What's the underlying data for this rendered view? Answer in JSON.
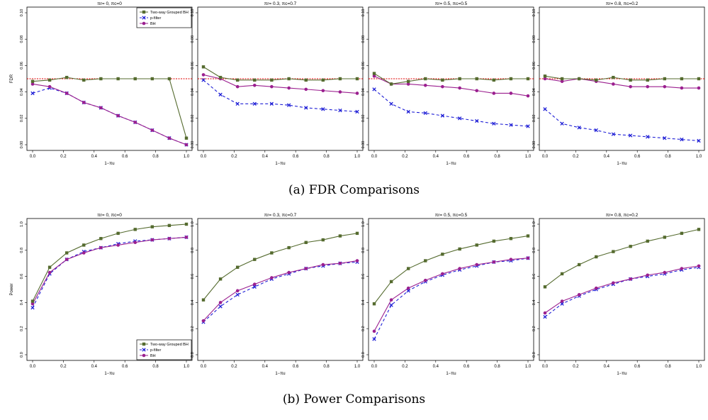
{
  "captions": {
    "fdr": "(a) FDR Comparisons",
    "power": "(b) Power Comparisons"
  },
  "legend": [
    "Two-way Grouped BH",
    "p-filter",
    "BH"
  ],
  "x_tick_labels": [
    "0.0",
    "0.2",
    "0.4",
    "0.6",
    "0.8",
    "1.0"
  ],
  "colors": {
    "two_way": "#556b2f",
    "p_filter": "#1f1fd6",
    "bh": "#9b1f8f",
    "target_line": "#e00000"
  },
  "chart_data": [
    {
      "type": "line",
      "title": "πr= 0, πc=0",
      "xlabel": "1−πu",
      "ylabel": "FDR",
      "ylim": [
        0,
        0.1
      ],
      "yticks": [
        "0.00",
        "0.02",
        "0.04",
        "0.06",
        "0.08",
        "0.10"
      ],
      "reference_line": 0.05,
      "legend": "top-right",
      "x": [
        0,
        0.111,
        0.222,
        0.333,
        0.444,
        0.556,
        0.667,
        0.778,
        0.889,
        1.0
      ],
      "series": [
        {
          "name": "Two-way Grouped BH",
          "values": [
            0.048,
            0.049,
            0.051,
            0.049,
            0.05,
            0.05,
            0.05,
            0.05,
            0.05,
            0.005
          ]
        },
        {
          "name": "p-filter",
          "values": [
            0.039,
            0.043,
            0.039,
            0.032,
            0.028,
            0.022,
            0.017,
            0.011,
            0.005,
            0.0
          ]
        },
        {
          "name": "BH",
          "values": [
            0.046,
            0.044,
            0.039,
            0.032,
            0.028,
            0.022,
            0.017,
            0.011,
            0.005,
            0.0
          ]
        }
      ]
    },
    {
      "type": "line",
      "title": "πr= 0.3, πc=0.7",
      "xlabel": "1−πu",
      "ylabel": "",
      "ylim": [
        0,
        0.1
      ],
      "yticks": [
        "0.00",
        "0.02",
        "0.04",
        "0.06",
        "0.08",
        "0.10"
      ],
      "reference_line": 0.05,
      "x": [
        0,
        0.111,
        0.222,
        0.333,
        0.444,
        0.556,
        0.667,
        0.778,
        0.889,
        1.0
      ],
      "series": [
        {
          "name": "Two-way Grouped BH",
          "values": [
            0.059,
            0.051,
            0.049,
            0.049,
            0.049,
            0.05,
            0.049,
            0.049,
            0.05,
            0.05
          ]
        },
        {
          "name": "p-filter",
          "values": [
            0.049,
            0.038,
            0.031,
            0.031,
            0.031,
            0.03,
            0.028,
            0.027,
            0.026,
            0.025
          ]
        },
        {
          "name": "BH",
          "values": [
            0.053,
            0.05,
            0.044,
            0.045,
            0.044,
            0.043,
            0.042,
            0.041,
            0.04,
            0.039
          ]
        }
      ]
    },
    {
      "type": "line",
      "title": "πr= 0.5, πc=0.5",
      "xlabel": "1−πu",
      "ylabel": "",
      "ylim": [
        0,
        0.1
      ],
      "yticks": [
        "0.00",
        "0.02",
        "0.04",
        "0.06",
        "0.08",
        "0.10"
      ],
      "reference_line": 0.05,
      "x": [
        0,
        0.111,
        0.222,
        0.333,
        0.444,
        0.556,
        0.667,
        0.778,
        0.889,
        1.0
      ],
      "series": [
        {
          "name": "Two-way Grouped BH",
          "values": [
            0.054,
            0.046,
            0.048,
            0.05,
            0.049,
            0.05,
            0.05,
            0.049,
            0.05,
            0.05
          ]
        },
        {
          "name": "p-filter",
          "values": [
            0.042,
            0.031,
            0.025,
            0.024,
            0.022,
            0.02,
            0.018,
            0.016,
            0.015,
            0.014
          ]
        },
        {
          "name": "BH",
          "values": [
            0.052,
            0.046,
            0.046,
            0.045,
            0.044,
            0.043,
            0.041,
            0.039,
            0.039,
            0.037
          ]
        }
      ]
    },
    {
      "type": "line",
      "title": "πr= 0.8, πc=0.2",
      "xlabel": "1−πu",
      "ylabel": "",
      "ylim": [
        0,
        0.1
      ],
      "yticks": [
        "0.00",
        "0.02",
        "0.04",
        "0.06",
        "0.08",
        "0.10"
      ],
      "reference_line": 0.05,
      "x": [
        0,
        0.111,
        0.222,
        0.333,
        0.444,
        0.556,
        0.667,
        0.778,
        0.889,
        1.0
      ],
      "series": [
        {
          "name": "Two-way Grouped BH",
          "values": [
            0.052,
            0.05,
            0.05,
            0.049,
            0.051,
            0.049,
            0.049,
            0.05,
            0.05,
            0.05
          ]
        },
        {
          "name": "p-filter",
          "values": [
            0.027,
            0.016,
            0.013,
            0.011,
            0.008,
            0.007,
            0.006,
            0.005,
            0.004,
            0.003
          ]
        },
        {
          "name": "BH",
          "values": [
            0.05,
            0.048,
            0.05,
            0.048,
            0.046,
            0.044,
            0.044,
            0.044,
            0.043,
            0.043
          ]
        }
      ]
    },
    {
      "type": "line",
      "title": "πr= 0, πc=0",
      "xlabel": "1−πu",
      "ylabel": "Power",
      "ylim": [
        0,
        1
      ],
      "yticks": [
        "0.0",
        "0.2",
        "0.4",
        "0.6",
        "0.8",
        "1.0"
      ],
      "legend": "bottom-right",
      "x": [
        0,
        0.111,
        0.222,
        0.333,
        0.444,
        0.556,
        0.667,
        0.778,
        0.889,
        1.0
      ],
      "series": [
        {
          "name": "Two-way Grouped BH",
          "values": [
            0.41,
            0.67,
            0.78,
            0.84,
            0.89,
            0.93,
            0.96,
            0.98,
            0.99,
            1.0
          ]
        },
        {
          "name": "p-filter",
          "values": [
            0.36,
            0.62,
            0.73,
            0.79,
            0.82,
            0.85,
            0.87,
            0.88,
            0.89,
            0.9
          ]
        },
        {
          "name": "BH",
          "values": [
            0.39,
            0.63,
            0.73,
            0.78,
            0.82,
            0.84,
            0.86,
            0.88,
            0.89,
            0.9
          ]
        }
      ]
    },
    {
      "type": "line",
      "title": "πr= 0.3, πc=0.7",
      "xlabel": "1−πu",
      "ylabel": "",
      "ylim": [
        0,
        1
      ],
      "yticks": [
        "0.0",
        "0.2",
        "0.4",
        "0.6",
        "0.8",
        "1.0"
      ],
      "x": [
        0,
        0.111,
        0.222,
        0.333,
        0.444,
        0.556,
        0.667,
        0.778,
        0.889,
        1.0
      ],
      "series": [
        {
          "name": "Two-way Grouped BH",
          "values": [
            0.42,
            0.58,
            0.67,
            0.73,
            0.78,
            0.82,
            0.86,
            0.88,
            0.91,
            0.93
          ]
        },
        {
          "name": "p-filter",
          "values": [
            0.25,
            0.37,
            0.46,
            0.52,
            0.58,
            0.62,
            0.66,
            0.68,
            0.7,
            0.71
          ]
        },
        {
          "name": "BH",
          "values": [
            0.26,
            0.4,
            0.49,
            0.54,
            0.59,
            0.63,
            0.66,
            0.69,
            0.7,
            0.72
          ]
        }
      ]
    },
    {
      "type": "line",
      "title": "πr= 0.5, πc=0.5",
      "xlabel": "1−πu",
      "ylabel": "",
      "ylim": [
        0,
        1
      ],
      "yticks": [
        "0.0",
        "0.2",
        "0.4",
        "0.6",
        "0.8",
        "1.0"
      ],
      "x": [
        0,
        0.111,
        0.222,
        0.333,
        0.444,
        0.556,
        0.667,
        0.778,
        0.889,
        1.0
      ],
      "series": [
        {
          "name": "Two-way Grouped BH",
          "values": [
            0.39,
            0.56,
            0.66,
            0.72,
            0.77,
            0.81,
            0.84,
            0.87,
            0.89,
            0.91
          ]
        },
        {
          "name": "p-filter",
          "values": [
            0.12,
            0.38,
            0.49,
            0.56,
            0.61,
            0.65,
            0.68,
            0.71,
            0.72,
            0.74
          ]
        },
        {
          "name": "BH",
          "values": [
            0.18,
            0.42,
            0.51,
            0.57,
            0.62,
            0.66,
            0.69,
            0.71,
            0.73,
            0.74
          ]
        }
      ]
    },
    {
      "type": "line",
      "title": "πr= 0.8, πc=0.2",
      "xlabel": "1−πu",
      "ylabel": "",
      "ylim": [
        0,
        1
      ],
      "yticks": [
        "0.0",
        "0.2",
        "0.4",
        "0.6",
        "0.8",
        "1.0"
      ],
      "x": [
        0,
        0.111,
        0.222,
        0.333,
        0.444,
        0.556,
        0.667,
        0.778,
        0.889,
        1.0
      ],
      "series": [
        {
          "name": "Two-way Grouped BH",
          "values": [
            0.52,
            0.62,
            0.69,
            0.75,
            0.79,
            0.83,
            0.87,
            0.9,
            0.93,
            0.96
          ]
        },
        {
          "name": "p-filter",
          "values": [
            0.29,
            0.39,
            0.45,
            0.5,
            0.54,
            0.58,
            0.6,
            0.62,
            0.65,
            0.67
          ]
        },
        {
          "name": "BH",
          "values": [
            0.32,
            0.41,
            0.46,
            0.51,
            0.55,
            0.58,
            0.61,
            0.63,
            0.66,
            0.68
          ]
        }
      ]
    }
  ]
}
